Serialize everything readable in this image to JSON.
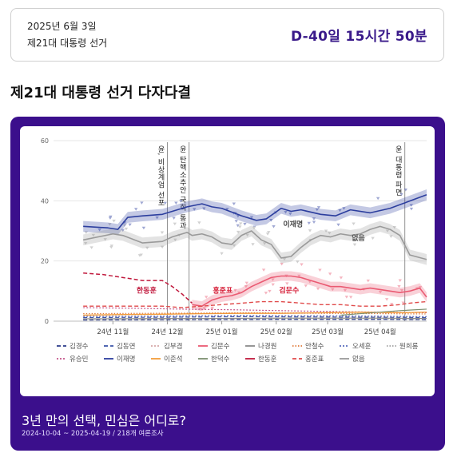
{
  "countdown": {
    "date": "2025년 6월 3일",
    "election_name": "제21대 대통령 선거",
    "dday": "D-40일 15시간 50분"
  },
  "section_title": "제21대 대통령 선거 다자다결",
  "colors": {
    "card_bg": "#3b0f8c",
    "accent": "#3a1a8a"
  },
  "chart_data": {
    "type": "line",
    "title": "",
    "xlabel": "",
    "ylabel": "",
    "ylim": [
      0,
      60
    ],
    "y_ticks": [
      0,
      20,
      40,
      60
    ],
    "x_tick_labels": [
      "24년 11월",
      "24년 12월",
      "25년 01월",
      "25년 02월",
      "25년 03월",
      "25년 04월"
    ],
    "x_tick_pos": [
      3,
      8.5,
      14,
      19.5,
      24.7,
      30
    ],
    "x_range": [
      -3,
      34.7
    ],
    "grid": true,
    "events": [
      {
        "x": 8.5,
        "label": "윤, 비상계엄 선포"
      },
      {
        "x": 10.7,
        "label": "윤 탄핵소추안 국회 통과"
      },
      {
        "x": 32.5,
        "label": "윤 대통령 파면"
      }
    ],
    "series": [
      {
        "name": "이재명",
        "color": "#2c3e9e",
        "dash": "",
        "width": 1.6,
        "band": 1.8,
        "x": [
          0,
          2.5,
          3.5,
          4.5,
          6,
          8,
          9.5,
          10.5,
          12,
          13,
          14,
          16,
          17.5,
          18.5,
          20,
          21,
          22,
          24,
          25.5,
          27,
          29,
          31,
          34.7
        ],
        "values": [
          31.5,
          31,
          30.5,
          34.5,
          35,
          35.5,
          37,
          38,
          39,
          38,
          37.5,
          35,
          33.5,
          34,
          37.5,
          36.5,
          37,
          35.5,
          35,
          37,
          36,
          37.5,
          42
        ]
      },
      {
        "name": "없음",
        "color": "#9a9a9a",
        "dash": "",
        "width": 1.6,
        "band": 1.8,
        "x": [
          0,
          3,
          4,
          6,
          8,
          9,
          10.5,
          11,
          12,
          13,
          14,
          15,
          16,
          17,
          18,
          19,
          20,
          21,
          22,
          23,
          24,
          25,
          26,
          27,
          28,
          29,
          30,
          31,
          32,
          33,
          34.7
        ],
        "values": [
          27,
          29,
          28.5,
          26,
          26.5,
          28,
          29.5,
          28.5,
          29,
          28,
          26,
          25.5,
          28.5,
          30,
          27,
          25.5,
          21,
          21.5,
          24.5,
          27,
          28.5,
          28,
          29,
          28.5,
          29,
          30.5,
          31.5,
          30.5,
          28.5,
          22,
          20.5
        ]
      },
      {
        "name": "한동훈",
        "color": "#c0183c",
        "dash": "5,3",
        "width": 1.5,
        "band": 0,
        "x": [
          0,
          2,
          4,
          6,
          8,
          9,
          10,
          11
        ],
        "values": [
          16,
          15.5,
          14.5,
          13.5,
          13.5,
          11.5,
          9,
          6
        ]
      },
      {
        "name": "김문수",
        "color": "#ea5a72",
        "dash": "",
        "width": 1.6,
        "band": 1.6,
        "x": [
          11,
          12,
          13,
          14,
          15,
          16,
          17,
          18,
          19,
          20,
          21,
          22,
          23,
          24,
          25,
          26,
          27,
          28,
          29,
          30,
          31,
          32,
          33,
          34,
          34.7
        ],
        "values": [
          5.5,
          5,
          7,
          8,
          8.5,
          9.5,
          11.5,
          13,
          14.5,
          15,
          15,
          14.5,
          13.5,
          12.5,
          11.5,
          11.5,
          11,
          10.5,
          11,
          10.5,
          10,
          9.5,
          10,
          11,
          8
        ]
      },
      {
        "name": "홍준표",
        "color": "#e04a4a",
        "dash": "5,3",
        "width": 1.4,
        "band": 0,
        "x": [
          0,
          4,
          8,
          10,
          12,
          14,
          16,
          18,
          20,
          22,
          24,
          26,
          28,
          30,
          32,
          33,
          34.7
        ],
        "values": [
          5,
          5,
          5,
          4.5,
          5,
          5.5,
          6,
          6.5,
          6.5,
          6,
          5.5,
          5.5,
          5,
          5,
          5.5,
          6,
          6.5
        ]
      },
      {
        "name": "유승민",
        "color": "#c4548a",
        "dash": "2,2",
        "width": 1.2,
        "band": 0,
        "x": [
          0,
          5,
          10,
          15,
          20,
          25,
          30,
          34.7
        ],
        "values": [
          4.5,
          4.3,
          4,
          3.8,
          3.5,
          3.2,
          3,
          2.8
        ]
      },
      {
        "name": "이준석",
        "color": "#f39c3a",
        "dash": "",
        "width": 1.4,
        "band": 0,
        "x": [
          0,
          4,
          8,
          12,
          16,
          20,
          24,
          28,
          32,
          34.7
        ],
        "values": [
          2,
          2.2,
          2.3,
          2.5,
          2.6,
          2.6,
          2.8,
          3,
          2.8,
          3
        ]
      },
      {
        "name": "안철수",
        "color": "#e07a3a",
        "dash": "1.5,2",
        "width": 1.2,
        "band": 0,
        "x": [
          0,
          6,
          12,
          18,
          24,
          30,
          34.7
        ],
        "values": [
          2.5,
          2.6,
          2.7,
          2.8,
          2.6,
          2.5,
          2.4
        ]
      },
      {
        "name": "김부겸",
        "color": "#d6a8a8",
        "dash": "2,2",
        "width": 1.1,
        "band": 0,
        "x": [
          0,
          8,
          16,
          24,
          34.7
        ],
        "values": [
          1.5,
          1.6,
          1.8,
          1.7,
          1.5
        ]
      },
      {
        "name": "오세훈",
        "color": "#5b6fbf",
        "dash": "2,2",
        "width": 1.1,
        "band": 0,
        "x": [
          0,
          8,
          16,
          24,
          30,
          34.7
        ],
        "values": [
          1.6,
          1.7,
          1.9,
          1.8,
          1.7,
          1.5
        ]
      },
      {
        "name": "김동연",
        "color": "#3a53a8",
        "dash": "5,3",
        "width": 1.2,
        "band": 0,
        "x": [
          0,
          8,
          16,
          24,
          30,
          34.7
        ],
        "values": [
          1.2,
          1.3,
          1.5,
          1.4,
          1.3,
          1.2
        ]
      },
      {
        "name": "한덕수",
        "color": "#7c8f6f",
        "dash": "",
        "width": 1.2,
        "band": 0,
        "x": [
          26,
          28,
          30,
          32,
          34.7
        ],
        "values": [
          2,
          2.5,
          3,
          3.5,
          4
        ]
      },
      {
        "name": "나경원",
        "color": "#8a8a8a",
        "dash": "",
        "width": 1.1,
        "band": 0,
        "x": [
          0,
          10,
          20,
          30,
          34.7
        ],
        "values": [
          0.8,
          0.9,
          1,
          1,
          0.9
        ]
      },
      {
        "name": "원희룡",
        "color": "#a0a0a0",
        "dash": "1.5,2",
        "width": 1.1,
        "band": 0,
        "x": [
          0,
          10,
          20,
          30,
          34.7
        ],
        "values": [
          0.6,
          0.7,
          0.8,
          0.8,
          0.7
        ]
      },
      {
        "name": "김경수",
        "color": "#2a3a8a",
        "dash": "5,3",
        "width": 1.2,
        "band": 0,
        "x": [
          0,
          10,
          20,
          30,
          34.7
        ],
        "values": [
          0.4,
          0.5,
          0.6,
          0.6,
          0.5
        ]
      }
    ],
    "annotations": [
      {
        "text": "이재명",
        "x": 21.2,
        "y": 31.5,
        "color": "#444444"
      },
      {
        "text": "없음",
        "x": 27.8,
        "y": 26.8,
        "color": "#555555"
      },
      {
        "text": "한동훈",
        "x": 6.4,
        "y": 9.4,
        "color": "#c0183c"
      },
      {
        "text": "홍준표",
        "x": 14.1,
        "y": 9.4,
        "color": "#d6213a"
      },
      {
        "text": "김문수",
        "x": 20.8,
        "y": 9.4,
        "color": "#d6213a"
      }
    ],
    "legend": [
      {
        "name": "김경수",
        "color": "#2a3a8a",
        "dash": "5,3"
      },
      {
        "name": "김동연",
        "color": "#3a53a8",
        "dash": "5,3"
      },
      {
        "name": "김부겸",
        "color": "#d6a8a8",
        "dash": "2,2"
      },
      {
        "name": "김문수",
        "color": "#ea5a72",
        "dash": ""
      },
      {
        "name": "나경원",
        "color": "#8a8a8a",
        "dash": ""
      },
      {
        "name": "안철수",
        "color": "#e07a3a",
        "dash": "1.5,2"
      },
      {
        "name": "오세훈",
        "color": "#5b6fbf",
        "dash": "2,2"
      },
      {
        "name": "원희룡",
        "color": "#a0a0a0",
        "dash": "1.5,2"
      },
      {
        "name": "유승민",
        "color": "#c4548a",
        "dash": "2,2"
      },
      {
        "name": "이재명",
        "color": "#2c3e9e",
        "dash": ""
      },
      {
        "name": "이준석",
        "color": "#f39c3a",
        "dash": ""
      },
      {
        "name": "한덕수",
        "color": "#7c8f6f",
        "dash": ""
      },
      {
        "name": "한동훈",
        "color": "#c0183c",
        "dash": ""
      },
      {
        "name": "홍준표",
        "color": "#e04a4a",
        "dash": "5,3"
      },
      {
        "name": "없음",
        "color": "#9a9a9a",
        "dash": ""
      }
    ]
  },
  "caption": {
    "title": "3년 만의 선택, 민심은 어디로?",
    "subtitle": "2024-10-04 ~ 2025-04-19 / 218개 여론조사"
  }
}
